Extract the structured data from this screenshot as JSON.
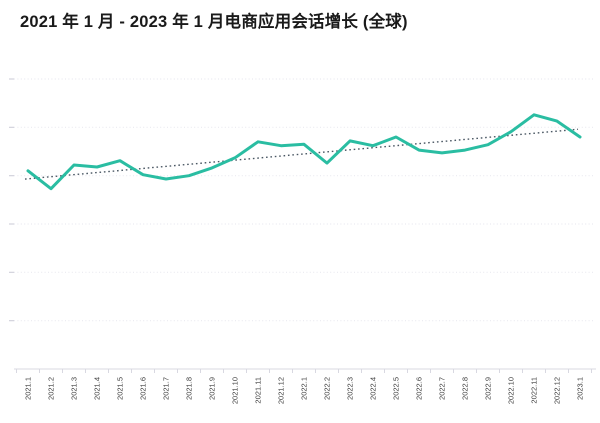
{
  "header": {
    "title": "2021 年 1 月 - 2023 年 1 月电商应用会话增长 (全球)"
  },
  "chart_data": {
    "type": "line",
    "title": "2021 年 1 月 - 2023 年 1 月电商应用会话增长 (全球)",
    "categories": [
      "2021.1",
      "2021.2",
      "2021.3",
      "2021.4",
      "2021.5",
      "2021.6",
      "2021.7",
      "2021.8",
      "2021.9",
      "2021.10",
      "2021.11",
      "2021.12",
      "2022.1",
      "2022.2",
      "2022.3",
      "2022.4",
      "2022.5",
      "2022.6",
      "2022.7",
      "2022.8",
      "2022.9",
      "2022.10",
      "2022.11",
      "2022.12",
      "2023.1"
    ],
    "series": [
      {
        "name": "电商应用会话增长",
        "color": "#2abda2",
        "values": [
          4.1,
          3.73,
          4.22,
          4.18,
          4.31,
          4.02,
          3.93,
          4.0,
          4.16,
          4.37,
          4.7,
          4.62,
          4.65,
          4.26,
          4.72,
          4.62,
          4.8,
          4.53,
          4.47,
          4.53,
          4.64,
          4.91,
          5.26,
          5.13,
          4.8
        ]
      }
    ],
    "trendline": {
      "style": "dotted",
      "color": "#4a5763",
      "start_value": 3.93,
      "end_value": 4.96
    },
    "xlabel": "",
    "ylabel": "",
    "ylim": [
      0,
      6
    ],
    "y_gridline_count": 6,
    "y_tick_labels_visible": false,
    "value_unit": "gridline-units (y axis unlabeled in source)",
    "grid": "horizontal-dotted",
    "legend_position": "none",
    "x_label_rotation_deg": -90
  },
  "colors": {
    "background": "#ffffff",
    "line": "#2abda2",
    "trendline": "#4a5763",
    "gridline": "#e9e9f0",
    "axis": "#d8d8e1",
    "tick": "#d2d2dc",
    "x_label_text": "#3f3f3f",
    "title_text": "#1a1a1a"
  }
}
